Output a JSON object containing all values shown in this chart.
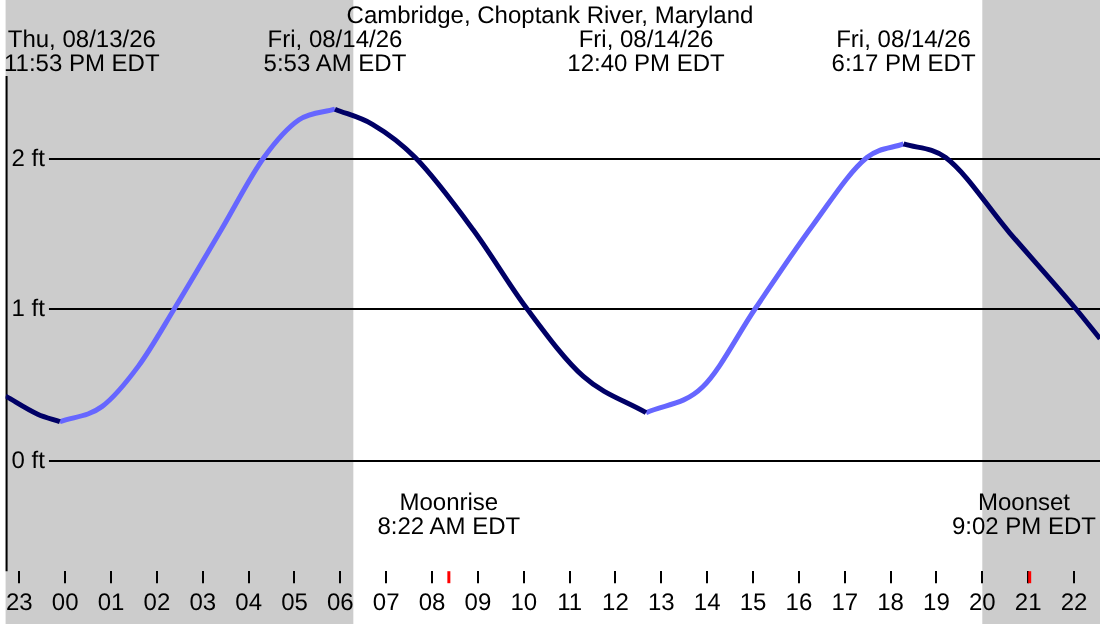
{
  "chart_data": {
    "type": "line",
    "title": "Cambridge, Choptank River, Maryland",
    "series": [
      {
        "color": "#000066",
        "x": [
          "--08-13T22:42",
          "--08-13T23:24",
          "--08-13T23:53",
          "--08-14T03:00",
          "--08-14T05:53",
          "--08-14T06:42",
          "--08-14T07:38",
          "--08-14T08:54",
          "--08-14T10:04",
          "--08-14T11:18",
          "--08-14T12:40",
          "--08-14T15:00",
          "--08-14T18:17",
          "--08-14T19:12",
          "--08-14T20:36",
          "--08-14T22:02",
          "--08-14T22:34"
        ],
        "values": [
          0.42,
          0.3,
          0.25,
          null,
          2.32,
          2.22,
          2.0,
          1.52,
          1.0,
          0.55,
          0.31,
          null,
          2.09,
          2.0,
          1.5,
          1.0,
          0.8
        ]
      },
      {
        "color": "#6666ff",
        "x": [
          "--08-13T23:53",
          "--08-14T00:48",
          "--08-14T01:36",
          "--08-14T02:23",
          "--08-14T03:24",
          "--08-14T04:20",
          "--08-14T05:06",
          "--08-14T05:53",
          "--08-14T09:00",
          "--08-14T12:40",
          "--08-14T13:54",
          "--08-14T15:03",
          "--08-14T16:18",
          "--08-14T17:29",
          "--08-14T18:17"
        ],
        "values": [
          0.25,
          0.35,
          0.62,
          1.0,
          1.52,
          2.0,
          2.25,
          2.32,
          null,
          0.31,
          0.48,
          1.0,
          1.55,
          2.0,
          2.09
        ]
      }
    ],
    "xlim": [
      "--08-13T22:42",
      "--08-14T22:34"
    ],
    "xticks": [
      {
        "value": "--08-13T23:00",
        "label": "23"
      },
      {
        "value": "--08-14T00:00",
        "label": "00"
      },
      {
        "value": "--08-14T01:00",
        "label": "01"
      },
      {
        "value": "--08-14T02:00",
        "label": "02"
      },
      {
        "value": "--08-14T03:00",
        "label": "03"
      },
      {
        "value": "--08-14T04:00",
        "label": "04"
      },
      {
        "value": "--08-14T05:00",
        "label": "05"
      },
      {
        "value": "--08-14T06:00",
        "label": "06"
      },
      {
        "value": "--08-14T07:00",
        "label": "07"
      },
      {
        "value": "--08-14T08:00",
        "label": "08"
      },
      {
        "value": "--08-14T09:00",
        "label": "09"
      },
      {
        "value": "--08-14T10:00",
        "label": "10"
      },
      {
        "value": "--08-14T11:00",
        "label": "11"
      },
      {
        "value": "--08-14T12:00",
        "label": "12"
      },
      {
        "value": "--08-14T13:00",
        "label": "13"
      },
      {
        "value": "--08-14T14:00",
        "label": "14"
      },
      {
        "value": "--08-14T15:00",
        "label": "15"
      },
      {
        "value": "--08-14T16:00",
        "label": "16"
      },
      {
        "value": "--08-14T17:00",
        "label": "17"
      },
      {
        "value": "--08-14T18:00",
        "label": "18"
      },
      {
        "value": "--08-14T19:00",
        "label": "19"
      },
      {
        "value": "--08-14T20:00",
        "label": "20"
      },
      {
        "value": "--08-14T21:00",
        "label": "21"
      },
      {
        "value": "--08-14T22:00",
        "label": "22"
      }
    ],
    "ylim": [
      -0.74,
      2.54
    ],
    "yticks": [
      {
        "value": 0,
        "label": "0 ft"
      },
      {
        "value": 1,
        "label": "1 ft"
      },
      {
        "value": 2,
        "label": "2 ft"
      }
    ],
    "grid": "y",
    "legend": false,
    "marker": "none",
    "line_style": "solid",
    "bands": [
      {
        "axis": "x",
        "from": "--08-13T22:42",
        "to": "--08-14T06:17",
        "color": "#cccccc"
      },
      {
        "axis": "x",
        "from": "--08-14T20:00",
        "to": "--08-14T22:34",
        "color": "#cccccc"
      }
    ],
    "ref_lines": [
      {
        "axis": "x",
        "value": "--08-14T08:22",
        "label": "Moonrise\n8:22 AM EDT",
        "color": "#ff0000"
      },
      {
        "axis": "x",
        "value": "--08-14T21:02",
        "label": "Moonset\n9:02 PM EDT",
        "color": "#ff0000"
      }
    ],
    "annotations": [
      "Thu, 08/13/26\n11:53 PM EDT",
      "Fri, 08/14/26\n5:53 AM EDT",
      "Fri, 08/14/26\n12:40 PM EDT",
      "Fri, 08/14/26\n6:17 PM EDT"
    ]
  }
}
